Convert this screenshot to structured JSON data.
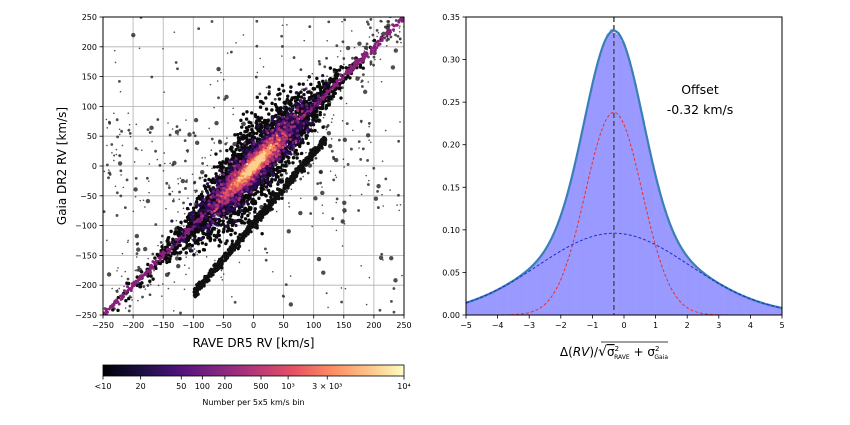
{
  "chart_data": [
    {
      "type": "scatter",
      "title": "",
      "xlabel": "RAVE DR5 RV [km/s]",
      "ylabel": "Gaia DR2 RV [km/s]",
      "xlim": [
        -250,
        250
      ],
      "ylim": [
        -250,
        250
      ],
      "x_ticks": [
        "−250",
        "−200",
        "−150",
        "−100",
        "−50",
        "0",
        "50",
        "100",
        "150",
        "200",
        "250"
      ],
      "y_ticks": [
        "−250",
        "−200",
        "−150",
        "−100",
        "−50",
        "0",
        "50",
        "100",
        "150",
        "200",
        "250"
      ],
      "grid": true,
      "trends": [
        {
          "name": "one-to-one",
          "x": [
            -250,
            250
          ],
          "y": [
            -250,
            250
          ]
        },
        {
          "name": "secondary",
          "x": [
            -100,
            120
          ],
          "y": [
            -215,
            45
          ]
        }
      ],
      "colorbar": {
        "label": "Number per 5x5 km/s bin",
        "colormap": "magma",
        "ticks": [
          "<10",
          "20",
          "50",
          "100",
          "200",
          "500",
          "10³",
          "3 × 10³",
          "10⁴"
        ]
      }
    },
    {
      "type": "area",
      "title": "",
      "xlabel": "Δ(RV)/√(σ²RAVE + σ²Gaia)",
      "xlim": [
        -5,
        5
      ],
      "ylim": [
        0,
        0.35
      ],
      "x_ticks": [
        "−5",
        "−4",
        "−3",
        "−2",
        "−1",
        "0",
        "1",
        "2",
        "3",
        "4",
        "5"
      ],
      "y_ticks": [
        "0.00",
        "0.05",
        "0.10",
        "0.15",
        "0.20",
        "0.25",
        "0.30",
        "0.35"
      ],
      "series": [
        {
          "name": "histogram",
          "color": "#9999ff",
          "peak": 0.335
        },
        {
          "name": "total fit",
          "color": "#3a7fb5",
          "mean": -0.32,
          "peak": 0.333
        },
        {
          "name": "narrow component",
          "color": "#e8302a",
          "mean": -0.32,
          "sigma": 0.9,
          "peak": 0.238
        },
        {
          "name": "wide component",
          "color": "#1f2ec7",
          "mean": -0.32,
          "sigma": 2.4,
          "peak": 0.096
        }
      ],
      "vline": {
        "x": -0.32,
        "color": "#555555"
      },
      "annotation": {
        "line1": "Offset",
        "line2": "-0.32 km/s"
      }
    }
  ]
}
